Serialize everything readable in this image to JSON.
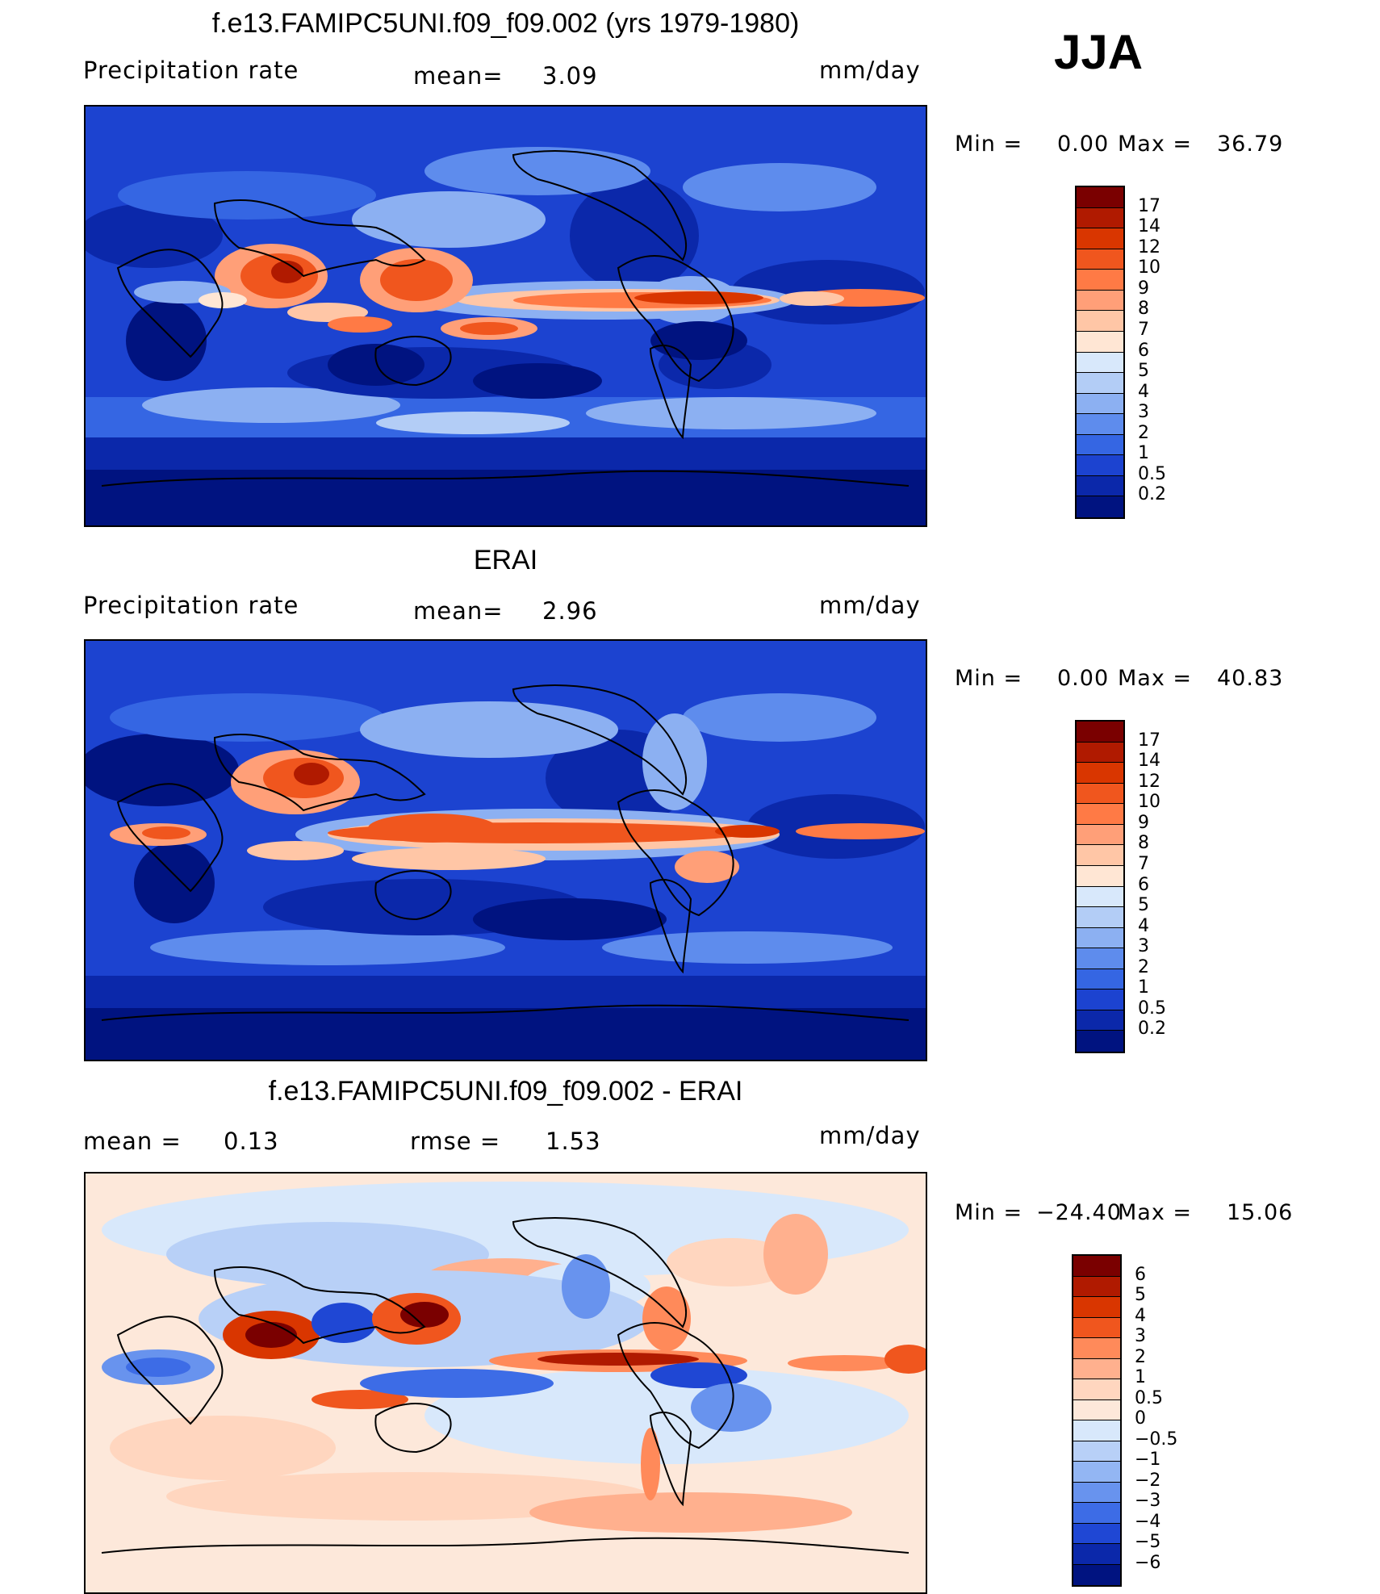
{
  "season": "JJA",
  "panels": {
    "model": {
      "title": "f.e13.FAMIPC5UNI.f09_f09.002 (yrs 1979-1980)",
      "left_label": "Precipitation rate",
      "mean_label": "mean=",
      "mean_value": "3.09",
      "units": "mm/day",
      "min_label": "Min =",
      "min_value": "0.00",
      "max_label": "Max =",
      "max_value": "36.79",
      "ticks": [
        "17",
        "14",
        "12",
        "10",
        "9",
        "8",
        "7",
        "6",
        "5",
        "4",
        "3",
        "2",
        "1",
        "0.5",
        "0.2"
      ]
    },
    "obs": {
      "title": "ERAI",
      "left_label": "Precipitation rate",
      "mean_label": "mean=",
      "mean_value": "2.96",
      "units": "mm/day",
      "min_label": "Min =",
      "min_value": "0.00",
      "max_label": "Max =",
      "max_value": "40.83",
      "ticks": [
        "17",
        "14",
        "12",
        "10",
        "9",
        "8",
        "7",
        "6",
        "5",
        "4",
        "3",
        "2",
        "1",
        "0.5",
        "0.2"
      ]
    },
    "diff": {
      "title": "f.e13.FAMIPC5UNI.f09_f09.002 - ERAI",
      "mean_label": "mean =",
      "mean_value": "0.13",
      "rmse_label": "rmse =",
      "rmse_value": "1.53",
      "units": "mm/day",
      "min_label": "Min =",
      "min_value": "−24.40",
      "max_label": "Max =",
      "max_value": "15.06",
      "ticks": [
        "6",
        "5",
        "4",
        "3",
        "2",
        "1",
        "0.5",
        "0",
        "−0.5",
        "−1",
        "−2",
        "−3",
        "−4",
        "−5",
        "−6"
      ]
    }
  },
  "colors": {
    "precip_scale": [
      "#7a0000",
      "#b01a00",
      "#d93600",
      "#f0561e",
      "#ff7a45",
      "#ff9f78",
      "#ffc6a6",
      "#ffe6d4",
      "#d8e8fb",
      "#b3cdf6",
      "#8cb0f2",
      "#5e8ced",
      "#3566e3",
      "#1c43d0",
      "#0b28aa",
      "#001380"
    ],
    "diff_scale": [
      "#7a0000",
      "#b01a00",
      "#d93600",
      "#f0561e",
      "#ff8a5a",
      "#ffb08e",
      "#ffd6bf",
      "#fde8da",
      "#d8e8fb",
      "#b8d0f7",
      "#93b6f3",
      "#6893ee",
      "#3d6ce6",
      "#1f47d4",
      "#0b28aa",
      "#001380"
    ]
  }
}
